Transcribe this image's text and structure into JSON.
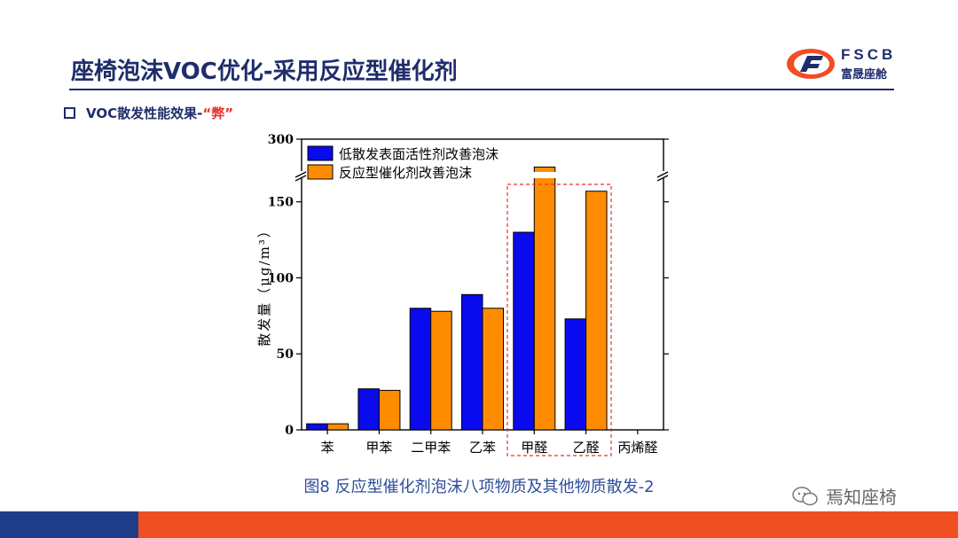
{
  "slide": {
    "title": "座椅泡沫VOC优化-采用反应型催化剂",
    "bullet_prefix": "VOC散发性能效果-",
    "bullet_accent": "“弊”",
    "caption": "图8 反应型催化剂泡沫八项物质及其他物质散发-2",
    "watermark": "焉知座椅"
  },
  "logo": {
    "top": "FSCB",
    "bottom": "富晟座舱"
  },
  "colors": {
    "title": "#1f2d6b",
    "accent": "#e8322c",
    "blue_series": "#0a0aee",
    "orange_series": "#ff8c00",
    "footer_blue": "#1f3c88",
    "footer_orange": "#f04e23"
  },
  "chart_data": {
    "type": "bar",
    "categories": [
      "苯",
      "甲苯",
      "二甲苯",
      "乙苯",
      "甲醛",
      "乙醛",
      "丙烯醛"
    ],
    "series": [
      {
        "name": "低散发表面活性剂改善泡沫",
        "values": [
          4,
          27,
          80,
          89,
          130,
          73,
          0
        ]
      },
      {
        "name": "反应型催化剂改善泡沫",
        "values": [
          4,
          26,
          78,
          80,
          265,
          157,
          0
        ]
      }
    ],
    "ylabel": "散发量（μg/m³）",
    "yticks": [
      0,
      50,
      100,
      150,
      300
    ],
    "ylim": [
      0,
      300
    ],
    "axis_break": [
      165,
      250
    ],
    "legend_position": "top-left",
    "highlight_categories": [
      "甲醛",
      "乙醛"
    ]
  }
}
